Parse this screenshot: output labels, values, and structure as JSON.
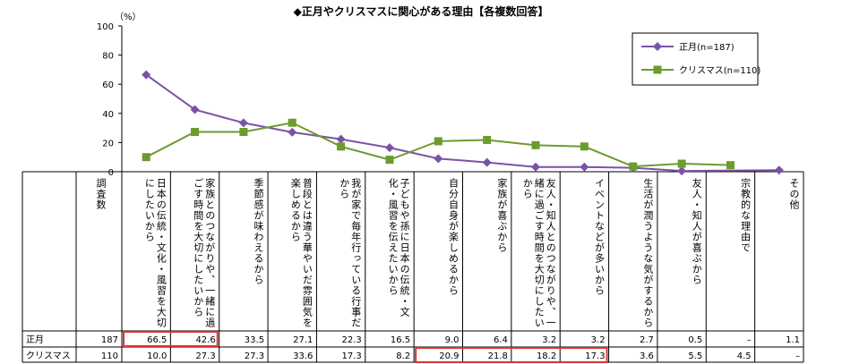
{
  "chart_data": {
    "type": "line",
    "title": "◆正月やクリスマスに関心がある理由【各複数回答】",
    "y_unit": "（%）",
    "ylim": [
      0,
      100
    ],
    "yticks": [
      0,
      20,
      40,
      60,
      80,
      100
    ],
    "header_label": "調査数",
    "categories": [
      "日本の伝統・文化・風習を大切にしたいから",
      "家族とのつながりや、一緒に過ごす時間を大切にしたいから",
      "季節感が味わえるから",
      "普段とは違う華やいだ雰囲気を楽しめるから",
      "我が家で毎年行っている行事だから",
      "子どもや孫に日本の伝統・文化・風習を伝えたいから",
      "自分自身が楽しめるから",
      "家族が喜ぶから",
      "友人・知人とのつながりや、一緒に過ごす時間を大切にしたいから",
      "イベントなどが多いから",
      "生活が潤うような気がするから",
      "友人・知人が喜ぶから",
      "宗教的な理由で",
      "その他"
    ],
    "series": [
      {
        "name": "正月(n=187)",
        "row_label": "正月",
        "n": "187",
        "color": "#7b52a8",
        "values": [
          66.5,
          42.6,
          33.5,
          27.1,
          22.3,
          16.5,
          9.0,
          6.4,
          3.2,
          3.2,
          2.7,
          0.5,
          null,
          1.1
        ],
        "labels": [
          "66.5",
          "42.6",
          "33.5",
          "27.1",
          "22.3",
          "16.5",
          "9.0",
          "6.4",
          "3.2",
          "3.2",
          "2.7",
          "0.5",
          "–",
          "1.1"
        ]
      },
      {
        "name": "クリスマス(n=110)",
        "row_label": "クリスマス",
        "n": "110",
        "color": "#6e9a2e",
        "values": [
          10.0,
          27.3,
          27.3,
          33.6,
          17.3,
          8.2,
          20.9,
          21.8,
          18.2,
          17.3,
          3.6,
          5.5,
          4.5,
          null
        ],
        "labels": [
          "10.0",
          "27.3",
          "27.3",
          "33.6",
          "17.3",
          "8.2",
          "20.9",
          "21.8",
          "18.2",
          "17.3",
          "3.6",
          "5.5",
          "4.5",
          "–"
        ]
      }
    ],
    "highlight_color": "#e03030",
    "legend_position": "top-right",
    "grid": false
  }
}
